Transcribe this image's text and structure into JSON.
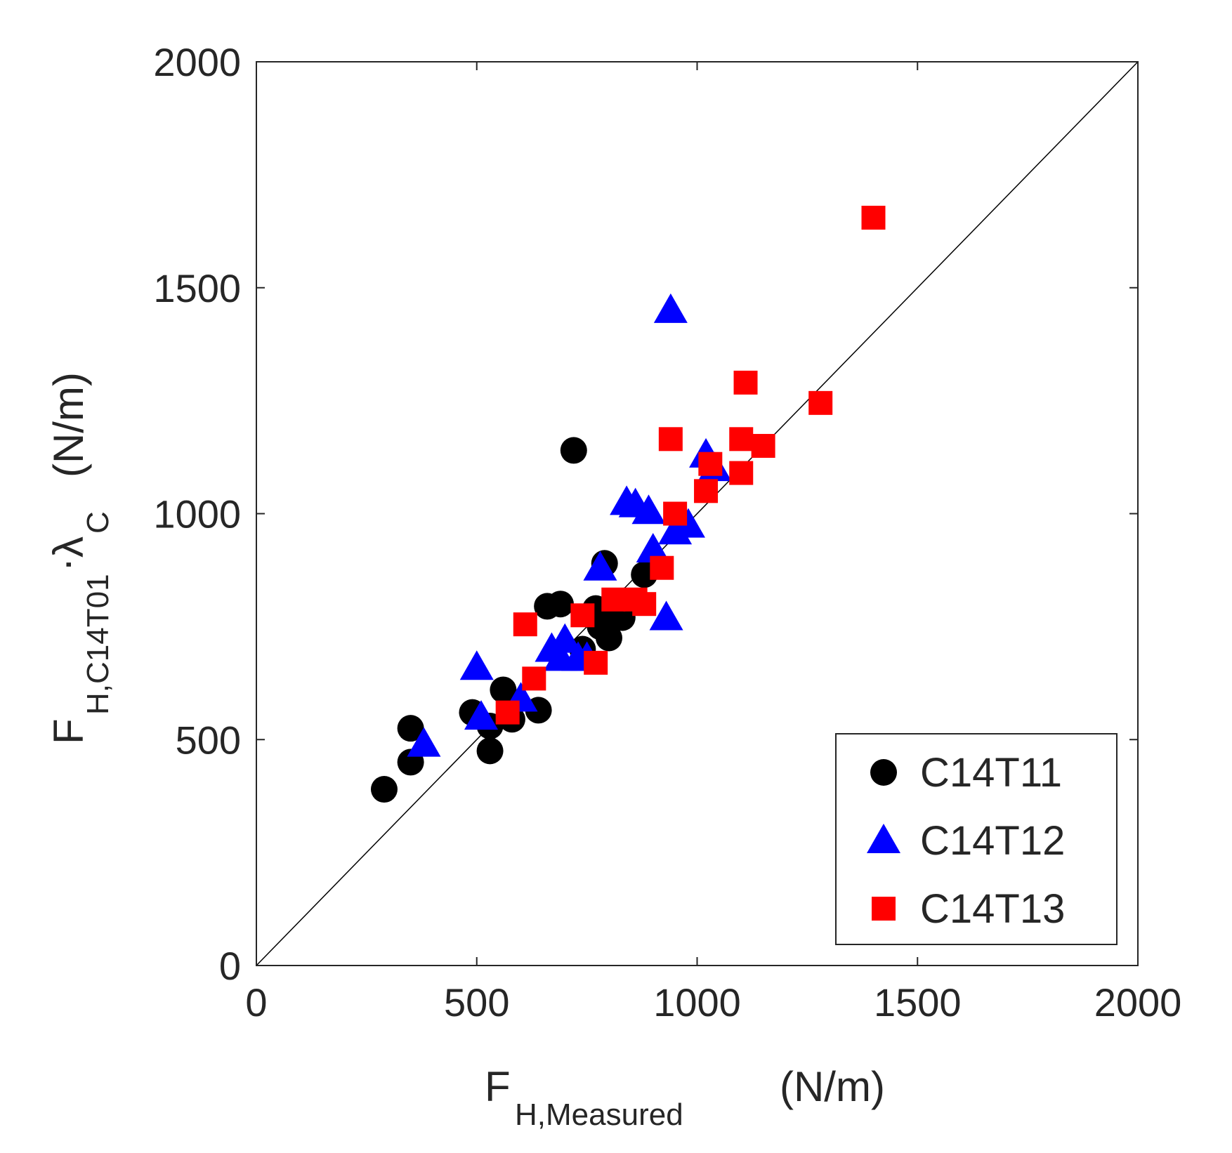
{
  "chart_data": {
    "type": "scatter",
    "title": "",
    "xlabel": {
      "main": "F",
      "sub": "H,Measured",
      "unit": "(N/m)"
    },
    "ylabel": {
      "main": "F",
      "sub1": "H,C14T01",
      "dot": "·",
      "lambda": "λ",
      "sub2": "C",
      "unit": "(N/m)"
    },
    "xlim": [
      0,
      2000
    ],
    "ylim": [
      0,
      2000
    ],
    "xticks": [
      0,
      500,
      1000,
      1500,
      2000
    ],
    "yticks": [
      0,
      500,
      1000,
      1500,
      2000
    ],
    "xtick_labels": [
      "0",
      "500",
      "1000",
      "1500",
      "2000"
    ],
    "ytick_labels": [
      "0",
      "500",
      "1000",
      "1500",
      "2000"
    ],
    "grid": false,
    "reference_line": {
      "label": "1:1",
      "from": [
        0,
        0
      ],
      "to": [
        2000,
        2000
      ]
    },
    "legend_position": "bottom-right",
    "series": [
      {
        "name": "C14T11",
        "marker": "circle",
        "color": "#000000",
        "points": [
          [
            290,
            390
          ],
          [
            350,
            450
          ],
          [
            350,
            525
          ],
          [
            490,
            560
          ],
          [
            530,
            475
          ],
          [
            530,
            530
          ],
          [
            560,
            610
          ],
          [
            580,
            545
          ],
          [
            640,
            565
          ],
          [
            660,
            795
          ],
          [
            690,
            800
          ],
          [
            720,
            1140
          ],
          [
            740,
            700
          ],
          [
            770,
            790
          ],
          [
            780,
            750
          ],
          [
            800,
            725
          ],
          [
            810,
            770
          ],
          [
            830,
            770
          ],
          [
            790,
            890
          ],
          [
            880,
            865
          ]
        ]
      },
      {
        "name": "C14T12",
        "marker": "triangle",
        "color": "#0000ff",
        "points": [
          [
            380,
            490
          ],
          [
            510,
            550
          ],
          [
            500,
            660
          ],
          [
            600,
            590
          ],
          [
            670,
            700
          ],
          [
            690,
            680
          ],
          [
            700,
            720
          ],
          [
            730,
            680
          ],
          [
            750,
            680
          ],
          [
            780,
            880
          ],
          [
            840,
            1025
          ],
          [
            860,
            1020
          ],
          [
            890,
            1005
          ],
          [
            900,
            920
          ],
          [
            930,
            770
          ],
          [
            940,
            1450
          ],
          [
            950,
            960
          ],
          [
            980,
            975
          ],
          [
            1020,
            1130
          ],
          [
            1040,
            1100
          ]
        ]
      },
      {
        "name": "C14T13",
        "marker": "square",
        "color": "#ff0000",
        "points": [
          [
            570,
            560
          ],
          [
            610,
            755
          ],
          [
            630,
            635
          ],
          [
            740,
            775
          ],
          [
            770,
            670
          ],
          [
            810,
            810
          ],
          [
            860,
            810
          ],
          [
            880,
            800
          ],
          [
            920,
            880
          ],
          [
            940,
            1165
          ],
          [
            950,
            1000
          ],
          [
            1020,
            1050
          ],
          [
            1030,
            1110
          ],
          [
            1100,
            1090
          ],
          [
            1100,
            1165
          ],
          [
            1110,
            1290
          ],
          [
            1150,
            1150
          ],
          [
            1280,
            1245
          ],
          [
            1400,
            1655
          ]
        ]
      }
    ]
  }
}
